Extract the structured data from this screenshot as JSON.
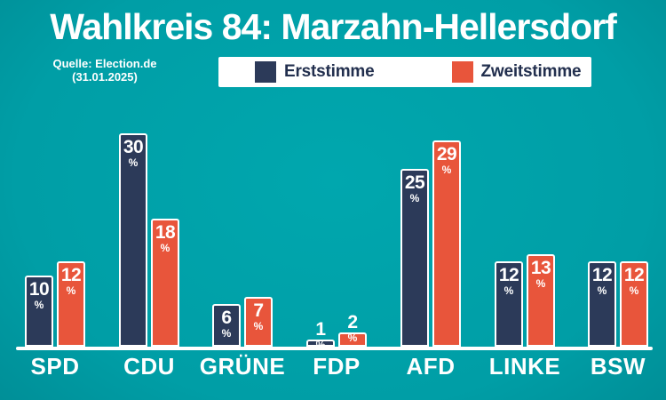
{
  "title": "Wahlkreis 84: Marzahn-Hellersdorf",
  "source": {
    "line1": "Quelle: Election.de",
    "line2": "(31.01.2025)"
  },
  "colors": {
    "background_center": "#00a7ae",
    "background_edge": "#00737c",
    "erststimme": "#2c3a59",
    "zweitstimme": "#e8553b",
    "legend_text": "#222f4e",
    "axis_line": "#ffffff",
    "text": "#ffffff"
  },
  "chart_data": {
    "type": "bar",
    "categories": [
      "SPD",
      "CDU",
      "GRÜNE",
      "FDP",
      "AFD",
      "LINKE",
      "BSW"
    ],
    "series": [
      {
        "name": "Erststimme",
        "color": "#2c3a59",
        "values": [
          10,
          30,
          6,
          1,
          25,
          12,
          12
        ]
      },
      {
        "name": "Zweitstimme",
        "color": "#e8553b",
        "values": [
          12,
          18,
          7,
          2,
          29,
          13,
          12
        ]
      }
    ],
    "unit": "%",
    "title": "Wahlkreis 84: Marzahn-Hellersdorf",
    "xlabel": "",
    "ylabel": "",
    "ylim": [
      0,
      30
    ],
    "grid": false,
    "legend_position": "top",
    "value_labels": true
  }
}
